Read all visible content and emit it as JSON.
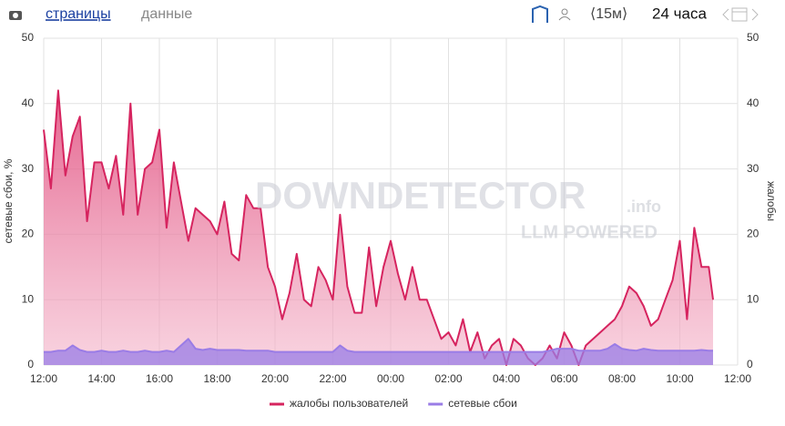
{
  "header": {
    "tabs": [
      "страницы",
      "данные"
    ],
    "interval": "⟨15м⟩",
    "range": "24 часа"
  },
  "watermark": [
    "DOWNDETECTOR",
    ".info",
    "LLM POWERED"
  ],
  "chart_data": {
    "type": "area",
    "ylabel": "сетевые сбои, %",
    "y2label": "жалобы",
    "xlim": [
      0,
      24
    ],
    "xticks": [
      {
        "value": 0,
        "label": "12:00"
      },
      {
        "value": 2,
        "label": "14:00"
      },
      {
        "value": 4,
        "label": "16:00"
      },
      {
        "value": 6,
        "label": "18:00"
      },
      {
        "value": 8,
        "label": "20:00"
      },
      {
        "value": 10,
        "label": "22:00"
      },
      {
        "value": 12,
        "label": "00:00"
      },
      {
        "value": 14,
        "label": "02:00"
      },
      {
        "value": 16,
        "label": "04:00"
      },
      {
        "value": 18,
        "label": "06:00"
      },
      {
        "value": 20,
        "label": "08:00"
      },
      {
        "value": 22,
        "label": "10:00"
      },
      {
        "value": 24,
        "label": "12:00"
      }
    ],
    "ylim": [
      0,
      50
    ],
    "yticks": [
      0,
      10,
      20,
      30,
      40,
      50
    ],
    "y2lim": [
      0,
      50
    ],
    "y2ticks": [
      0,
      10,
      20,
      30,
      40,
      50
    ],
    "grid": true,
    "legend": "bottom",
    "x": [
      0,
      0.25,
      0.5,
      0.75,
      1,
      1.25,
      1.5,
      1.75,
      2,
      2.25,
      2.5,
      2.75,
      3,
      3.25,
      3.5,
      3.75,
      4,
      4.25,
      4.5,
      4.75,
      5,
      5.25,
      5.5,
      5.75,
      6,
      6.25,
      6.5,
      6.75,
      7,
      7.25,
      7.5,
      7.75,
      8,
      8.25,
      8.5,
      8.75,
      9,
      9.25,
      9.5,
      9.75,
      10,
      10.25,
      10.5,
      10.75,
      11,
      11.25,
      11.5,
      11.75,
      12,
      12.25,
      12.5,
      12.75,
      13,
      13.25,
      13.5,
      13.75,
      14,
      14.25,
      14.5,
      14.75,
      15,
      15.25,
      15.5,
      15.75,
      16,
      16.25,
      16.5,
      16.75,
      17,
      17.25,
      17.5,
      17.75,
      18,
      18.25,
      18.5,
      18.75,
      19,
      19.25,
      19.5,
      19.75,
      20,
      20.25,
      20.5,
      20.75,
      21,
      21.25,
      21.5,
      21.75,
      22,
      22.25,
      22.5,
      22.75,
      23,
      23.15
    ],
    "series": [
      {
        "name": "жалобы пользователей",
        "color": "#d6245f",
        "axis": "y2",
        "values": [
          36,
          27,
          42,
          29,
          35,
          38,
          22,
          31,
          31,
          27,
          32,
          23,
          40,
          23,
          30,
          31,
          36,
          21,
          31,
          25,
          19,
          24,
          23,
          22,
          20,
          25,
          17,
          16,
          26,
          24,
          24,
          15,
          12,
          7,
          11,
          17,
          10,
          9,
          15,
          13,
          10,
          23,
          12,
          8,
          8,
          18,
          9,
          15,
          19,
          14,
          10,
          15,
          10,
          10,
          7,
          4,
          5,
          3,
          7,
          2,
          5,
          1,
          3,
          4,
          0,
          4,
          3,
          1,
          0,
          1,
          3,
          1,
          5,
          3,
          0,
          3,
          4,
          5,
          6,
          7,
          9,
          12,
          11,
          9,
          6,
          7,
          10,
          13,
          19,
          7,
          21,
          15,
          15,
          10
        ]
      },
      {
        "name": "сетевые сбои",
        "color": "#9a7ce6",
        "values": [
          2,
          2,
          2.2,
          2.2,
          3,
          2.3,
          2,
          2,
          2.2,
          2,
          2,
          2.2,
          2,
          2,
          2.2,
          2,
          2,
          2.2,
          2,
          3,
          4,
          2.5,
          2.3,
          2.5,
          2.3,
          2.3,
          2.3,
          2.3,
          2.2,
          2.2,
          2.2,
          2.2,
          2,
          2,
          2,
          2,
          2,
          2,
          2,
          2,
          2,
          3,
          2.2,
          2,
          2,
          2,
          2,
          2,
          2,
          2,
          2,
          2,
          2,
          2,
          2,
          2,
          2,
          2,
          2,
          2,
          2,
          2,
          2,
          2,
          2,
          2,
          2,
          2,
          2,
          2,
          2.2,
          2.5,
          2.5,
          2.5,
          2.2,
          2.2,
          2.2,
          2.2,
          2.5,
          3.2,
          2.5,
          2.3,
          2.2,
          2.5,
          2.3,
          2.2,
          2.2,
          2.2,
          2.2,
          2.2,
          2.2,
          2.3,
          2.2,
          2.2
        ]
      }
    ]
  }
}
